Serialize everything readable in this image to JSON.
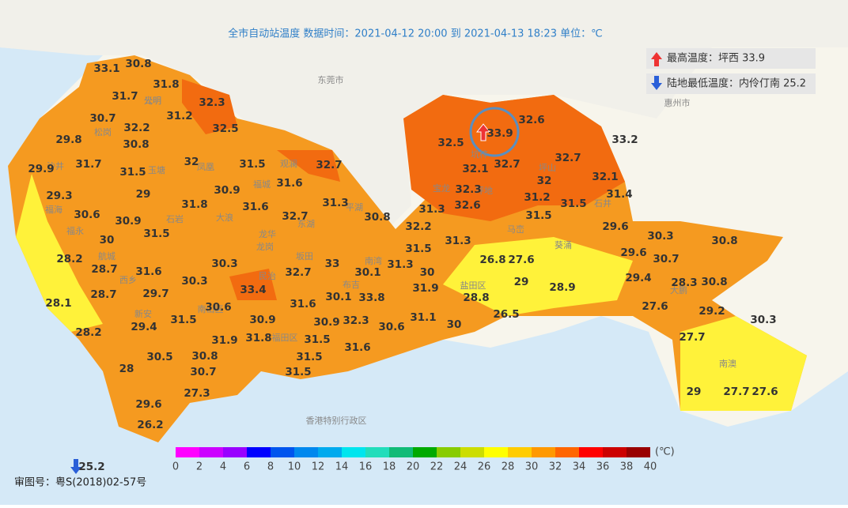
{
  "header": {
    "title": "全市自动站温度  数据时间：2021-04-12 20:00 到 2021-04-13 18:23  单位：℃"
  },
  "legend": {
    "max": "最高温度：坪西 33.9",
    "min": "陆地最低温度：内伶仃南 25.2"
  },
  "places": [
    "东莞市",
    "惠州市",
    "香港特别行政区",
    "光明",
    "公明",
    "松岗",
    "沙井",
    "福海",
    "福永",
    "航城",
    "西乡",
    "新安",
    "石岩",
    "玉塘",
    "凤凰",
    "大浪",
    "观澜",
    "福城",
    "龙华",
    "民治",
    "坂田",
    "平湖",
    "南湾",
    "布吉",
    "南山区",
    "福田区",
    "东湖",
    "龙岗",
    "宝龙",
    "坪地",
    "坑梓",
    "坪山",
    "石井",
    "马峦",
    "葵涌",
    "盐田区",
    "大鹏",
    "南澳"
  ],
  "stations": [
    33.1,
    30.8,
    31.8,
    31.7,
    32.3,
    30.7,
    31.2,
    32.2,
    32.5,
    29.8,
    30.8,
    29.9,
    31.7,
    31.5,
    32,
    31.5,
    32.7,
    31.6,
    29,
    29.3,
    30.9,
    31.8,
    31.3,
    31.6,
    30.6,
    30.9,
    32.7,
    30.8,
    31.5,
    30,
    28.2,
    30.3,
    33,
    32.7,
    30.1,
    31.6,
    28.7,
    30.3,
    33.4,
    29.7,
    28.7,
    28.1,
    30.6,
    31.6,
    30.1,
    33.8,
    31.5,
    29.4,
    30.9,
    30.9,
    32.3,
    30.6,
    28.2,
    31.8,
    31.9,
    31.5,
    31.6,
    30.5,
    30.8,
    31.5,
    28,
    30.7,
    31.5,
    27.3,
    29.6,
    26.2,
    25.2,
    32.6,
    33.9,
    33.2,
    32.5,
    32.1,
    32.7,
    32.7,
    32,
    32.1,
    32.3,
    31.2,
    31.4,
    32.6,
    31.3,
    31.5,
    31.5,
    32.2,
    29.6,
    31.3,
    31.5,
    31.3,
    30.3,
    30.8,
    26.8,
    27.6,
    29.6,
    30.7,
    30,
    29.4,
    28.3,
    30.8,
    29,
    31.9,
    28.9,
    28.8,
    27.6,
    29.2,
    31.1,
    26.5,
    30.3,
    30,
    27.7,
    29,
    27.7,
    27.6
  ],
  "colorbar": {
    "unit": "(℃)",
    "ticks": [
      0,
      2,
      4,
      6,
      8,
      10,
      12,
      14,
      16,
      18,
      20,
      22,
      24,
      26,
      28,
      30,
      32,
      34,
      36,
      38,
      40
    ],
    "colors": [
      "#ff00ff",
      "#cc00ff",
      "#9900ff",
      "#0000ff",
      "#0055ee",
      "#0088ee",
      "#00aaee",
      "#00e5ee",
      "#22ddbb",
      "#11bb77",
      "#00aa00",
      "#88cc00",
      "#ccdd00",
      "#ffff00",
      "#ffcc00",
      "#ff9900",
      "#ff6600",
      "#ff0000",
      "#cc0000",
      "#990000"
    ]
  },
  "footer": {
    "approval": "审图号：粤S(2018)02-57号"
  }
}
